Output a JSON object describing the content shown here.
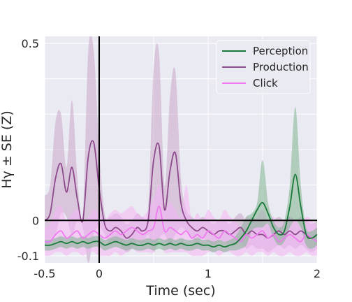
{
  "chart_data": {
    "type": "line",
    "xlabel": "Time (sec)",
    "ylabel": "Hγ ± SE (Z)",
    "xlim": [
      -0.5,
      2
    ],
    "ylim": [
      -0.12,
      0.52
    ],
    "xticks": [
      -0.5,
      0,
      1,
      2
    ],
    "xtick_labels": [
      "-0.5",
      "0",
      "1",
      "2"
    ],
    "yticks": [
      -0.1,
      0,
      0.5
    ],
    "ytick_labels": [
      "-0.1",
      "0",
      "0.5"
    ],
    "grid": true,
    "legend_position": "top-right",
    "reference_lines": {
      "x": 0,
      "y": 0
    },
    "x": [
      -0.5,
      -0.45,
      -0.4,
      -0.35,
      -0.3,
      -0.25,
      -0.2,
      -0.15,
      -0.1,
      -0.05,
      0,
      0.05,
      0.1,
      0.15,
      0.2,
      0.25,
      0.3,
      0.35,
      0.4,
      0.45,
      0.5,
      0.55,
      0.6,
      0.65,
      0.7,
      0.75,
      0.8,
      0.85,
      0.9,
      0.95,
      1,
      1.05,
      1.1,
      1.15,
      1.2,
      1.25,
      1.3,
      1.35,
      1.4,
      1.45,
      1.5,
      1.55,
      1.6,
      1.65,
      1.7,
      1.75,
      1.8,
      1.85,
      1.9,
      1.95,
      2
    ],
    "series": [
      {
        "name": "Perception",
        "color": "#1a7a3a",
        "band_color": "#7fb28e",
        "values": [
          -0.07,
          -0.07,
          -0.065,
          -0.06,
          -0.065,
          -0.06,
          -0.065,
          -0.06,
          -0.065,
          -0.06,
          -0.06,
          -0.07,
          -0.065,
          -0.06,
          -0.065,
          -0.07,
          -0.065,
          -0.07,
          -0.07,
          -0.065,
          -0.07,
          -0.065,
          -0.07,
          -0.065,
          -0.07,
          -0.065,
          -0.07,
          -0.07,
          -0.065,
          -0.07,
          -0.07,
          -0.075,
          -0.07,
          -0.075,
          -0.07,
          -0.065,
          -0.05,
          -0.03,
          0.0,
          0.03,
          0.05,
          0.02,
          -0.02,
          -0.04,
          -0.03,
          0.04,
          0.13,
          0.04,
          -0.04,
          -0.05,
          -0.04
        ],
        "upper": [
          -0.055,
          -0.055,
          -0.05,
          -0.045,
          -0.05,
          -0.045,
          -0.05,
          -0.045,
          -0.05,
          -0.045,
          -0.045,
          -0.055,
          -0.05,
          -0.045,
          -0.05,
          -0.055,
          -0.05,
          -0.055,
          -0.055,
          -0.05,
          -0.055,
          -0.05,
          -0.055,
          -0.05,
          -0.055,
          -0.05,
          -0.055,
          -0.055,
          -0.05,
          -0.055,
          -0.055,
          -0.06,
          -0.055,
          -0.06,
          -0.055,
          -0.045,
          -0.02,
          0.01,
          0.02,
          0.05,
          0.17,
          0.05,
          0.0,
          -0.02,
          0.0,
          0.1,
          0.32,
          0.1,
          -0.02,
          -0.03,
          -0.02
        ],
        "lower": [
          -0.085,
          -0.085,
          -0.08,
          -0.075,
          -0.08,
          -0.075,
          -0.08,
          -0.075,
          -0.08,
          -0.075,
          -0.075,
          -0.085,
          -0.08,
          -0.075,
          -0.08,
          -0.085,
          -0.08,
          -0.085,
          -0.085,
          -0.08,
          -0.085,
          -0.08,
          -0.085,
          -0.08,
          -0.085,
          -0.08,
          -0.085,
          -0.085,
          -0.08,
          -0.085,
          -0.085,
          -0.09,
          -0.085,
          -0.09,
          -0.085,
          -0.085,
          -0.08,
          -0.07,
          -0.03,
          -0.02,
          -0.02,
          -0.01,
          -0.05,
          -0.07,
          -0.06,
          -0.02,
          0.0,
          -0.02,
          -0.07,
          -0.08,
          -0.07
        ]
      },
      {
        "name": "Production",
        "color": "#8e4a8c",
        "band_color": "#c9a6c9",
        "values": [
          0.0,
          0.02,
          0.12,
          0.16,
          0.08,
          0.15,
          0.06,
          0.0,
          0.18,
          0.22,
          0.09,
          -0.01,
          -0.03,
          -0.02,
          -0.03,
          -0.05,
          -0.04,
          -0.02,
          -0.03,
          0.0,
          0.17,
          0.21,
          0.03,
          0.14,
          0.19,
          0.05,
          0.0,
          -0.02,
          -0.03,
          -0.02,
          -0.03,
          -0.04,
          -0.03,
          -0.03,
          -0.04,
          -0.03,
          -0.02,
          -0.04,
          -0.03,
          -0.04,
          -0.04,
          -0.05,
          -0.04,
          -0.03,
          -0.04,
          -0.03,
          -0.04,
          -0.03,
          -0.04,
          -0.05,
          -0.04
        ],
        "upper": [
          0.07,
          0.1,
          0.28,
          0.3,
          0.15,
          0.34,
          0.12,
          0.02,
          0.48,
          0.48,
          0.2,
          0.02,
          0.01,
          0.02,
          0.01,
          -0.01,
          0.0,
          0.02,
          0.01,
          0.04,
          0.43,
          0.47,
          0.1,
          0.35,
          0.42,
          0.12,
          0.03,
          0.01,
          0.0,
          0.01,
          0.0,
          -0.01,
          0.0,
          0.0,
          -0.01,
          0.01,
          0.02,
          0.0,
          0.01,
          0.0,
          0.0,
          -0.01,
          0.0,
          0.01,
          0.0,
          0.01,
          0.0,
          0.01,
          0.0,
          -0.01,
          0.0
        ],
        "lower": [
          -0.07,
          -0.06,
          -0.04,
          0.02,
          0.01,
          -0.04,
          0.0,
          -0.02,
          -0.12,
          -0.04,
          -0.02,
          -0.04,
          -0.07,
          -0.06,
          -0.07,
          -0.09,
          -0.08,
          -0.06,
          -0.07,
          -0.04,
          -0.09,
          -0.05,
          -0.04,
          -0.07,
          -0.04,
          -0.02,
          -0.03,
          -0.05,
          -0.06,
          -0.05,
          -0.06,
          -0.07,
          -0.06,
          -0.06,
          -0.07,
          -0.07,
          -0.06,
          -0.08,
          -0.07,
          -0.08,
          -0.08,
          -0.09,
          -0.08,
          -0.07,
          -0.08,
          -0.07,
          -0.08,
          -0.07,
          -0.08,
          -0.09,
          -0.08
        ]
      },
      {
        "name": "Click",
        "color": "#f07af0",
        "band_color": "#f6b5f6",
        "values": [
          -0.06,
          -0.06,
          -0.04,
          -0.03,
          -0.05,
          -0.04,
          -0.03,
          -0.05,
          -0.04,
          -0.03,
          -0.04,
          -0.05,
          -0.04,
          -0.03,
          -0.04,
          -0.03,
          -0.02,
          -0.03,
          -0.04,
          -0.03,
          -0.02,
          0.04,
          -0.03,
          -0.02,
          -0.03,
          -0.04,
          -0.03,
          -0.05,
          -0.04,
          -0.05,
          -0.03,
          -0.04,
          -0.05,
          -0.03,
          -0.04,
          -0.05,
          -0.06,
          -0.04,
          -0.05,
          -0.04,
          -0.03,
          -0.05,
          -0.04,
          -0.06,
          -0.05,
          -0.04,
          -0.05,
          -0.06,
          -0.04,
          -0.05,
          -0.06
        ],
        "upper": [
          -0.02,
          -0.01,
          0.03,
          0.04,
          0.0,
          0.02,
          0.03,
          0.0,
          0.01,
          0.03,
          0.02,
          0.0,
          0.02,
          0.03,
          0.02,
          0.03,
          0.04,
          0.02,
          0.01,
          0.03,
          0.06,
          0.1,
          0.03,
          0.05,
          0.03,
          0.01,
          0.1,
          0.0,
          0.02,
          0.0,
          0.03,
          0.01,
          0.0,
          0.03,
          0.01,
          0.0,
          -0.02,
          0.01,
          0.0,
          0.01,
          0.03,
          0.0,
          0.01,
          -0.02,
          0.0,
          0.01,
          0.0,
          -0.02,
          0.01,
          0.0,
          -0.02
        ],
        "lower": [
          -0.1,
          -0.1,
          -0.09,
          -0.09,
          -0.1,
          -0.09,
          -0.09,
          -0.1,
          -0.09,
          -0.09,
          -0.1,
          -0.1,
          -0.1,
          -0.09,
          -0.1,
          -0.09,
          -0.08,
          -0.09,
          -0.09,
          -0.09,
          -0.09,
          -0.05,
          -0.09,
          -0.09,
          -0.09,
          -0.09,
          -0.09,
          -0.1,
          -0.1,
          -0.1,
          -0.09,
          -0.09,
          -0.1,
          -0.09,
          -0.09,
          -0.1,
          -0.1,
          -0.09,
          -0.1,
          -0.09,
          -0.09,
          -0.1,
          -0.09,
          -0.1,
          -0.1,
          -0.09,
          -0.1,
          -0.1,
          -0.09,
          -0.1,
          -0.1
        ]
      }
    ]
  }
}
